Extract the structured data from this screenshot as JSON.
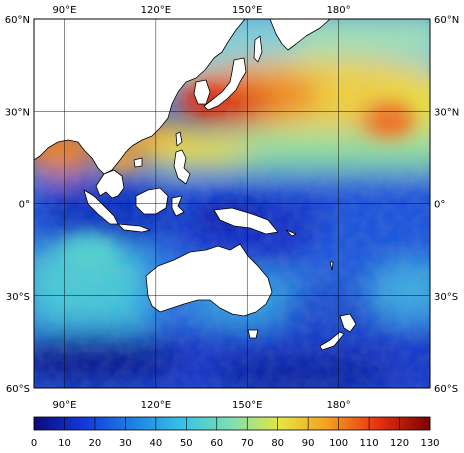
{
  "map": {
    "lon_labels": [
      "90°E",
      "120°E",
      "150°E",
      "180°"
    ],
    "lat_labels": [
      "60°N",
      "30°N",
      "0°",
      "30°S",
      "60°S"
    ],
    "lon_range": [
      80,
      210
    ],
    "lat_range": [
      -60,
      60
    ],
    "graticule_lon": [
      90,
      120,
      150,
      180
    ],
    "graticule_lat": [
      -30,
      0,
      30
    ]
  },
  "colorbar": {
    "ticks": [
      "0",
      "10",
      "20",
      "30",
      "40",
      "50",
      "60",
      "70",
      "80",
      "90",
      "100",
      "110",
      "120",
      "130"
    ],
    "min": 0,
    "max": 130,
    "colors": [
      "#0b0b7a",
      "#1236d8",
      "#1f7fe6",
      "#35c1e6",
      "#7fe0b0",
      "#e6e640",
      "#f5a020",
      "#e83010",
      "#7a0000"
    ]
  },
  "colors": {
    "land": "#ffffff",
    "coast": "#000000",
    "frame": "#000000",
    "grid": "#000000"
  }
}
